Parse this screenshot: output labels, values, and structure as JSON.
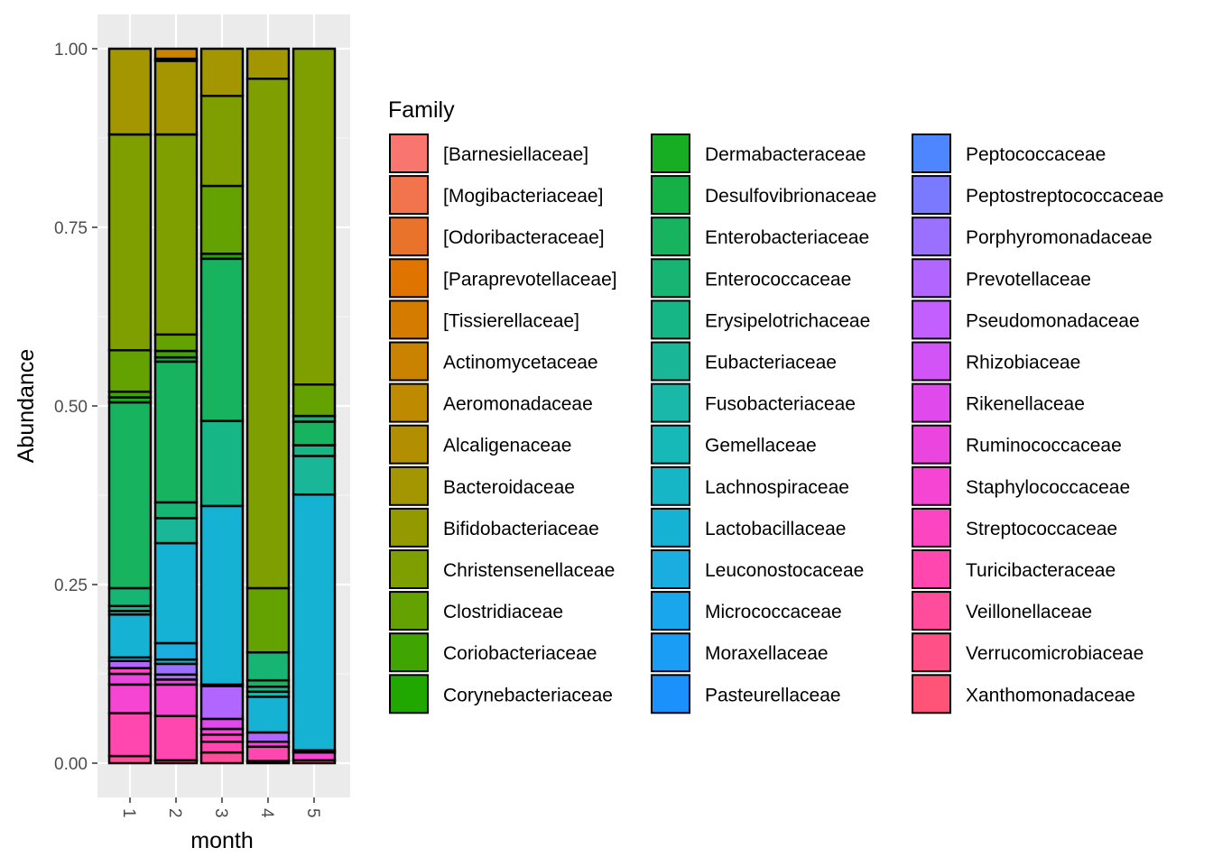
{
  "chart_data": {
    "type": "bar",
    "stacked": true,
    "xlabel": "month",
    "ylabel": "Abundance",
    "ylim": [
      0,
      1.05
    ],
    "x_tick_rotation": "vertical",
    "y_ticks": [
      "0.00",
      "0.25",
      "0.50",
      "0.75",
      "1.00"
    ],
    "categories": [
      "1",
      "2",
      "3",
      "4",
      "5"
    ],
    "legend": {
      "title": "Family",
      "position": "right",
      "columns": 3
    },
    "families": [
      {
        "name": "[Barnesiellaceae]",
        "color": "#F8766D"
      },
      {
        "name": "[Mogibacteriaceae]",
        "color": "#F2744C"
      },
      {
        "name": "[Odoribacteraceae]",
        "color": "#E9732B"
      },
      {
        "name": "[Paraprevotellaceae]",
        "color": "#DF7400"
      },
      {
        "name": "[Tissierellaceae]",
        "color": "#D37C00"
      },
      {
        "name": "Actinomycetaceae",
        "color": "#C98300"
      },
      {
        "name": "Aeromonadaceae",
        "color": "#BE8A00"
      },
      {
        "name": "Alcaligenaceae",
        "color": "#B28F00"
      },
      {
        "name": "Bacteroidaceae",
        "color": "#A39600"
      },
      {
        "name": "Bifidobacteriaceae",
        "color": "#929A00"
      },
      {
        "name": "Christensenellaceae",
        "color": "#7F9F00"
      },
      {
        "name": "Clostridiaceae",
        "color": "#63A200"
      },
      {
        "name": "Coriobacteriaceae",
        "color": "#41A500"
      },
      {
        "name": "Corynebacteriaceae",
        "color": "#21A800"
      },
      {
        "name": "Dermabacteraceae",
        "color": "#17AE24"
      },
      {
        "name": "Desulfovibrionaceae",
        "color": "#15B146"
      },
      {
        "name": "Enterobacteriaceae",
        "color": "#17B35E"
      },
      {
        "name": "Enterococcaceae",
        "color": "#16B574"
      },
      {
        "name": "Erysipelotrichaceae",
        "color": "#16B687"
      },
      {
        "name": "Eubacteriaceae",
        "color": "#19B798"
      },
      {
        "name": "Fusobacteriaceae",
        "color": "#19B8A8"
      },
      {
        "name": "Gemellaceae",
        "color": "#17B8B8"
      },
      {
        "name": "Lachnospiraceae",
        "color": "#17B6C6"
      },
      {
        "name": "Lactobacillaceae",
        "color": "#16B2D4"
      },
      {
        "name": "Leuconostocaceae",
        "color": "#1AADE0"
      },
      {
        "name": "Micrococcaceae",
        "color": "#1AA6EA"
      },
      {
        "name": "Moraxellaceae",
        "color": "#1A9DF5"
      },
      {
        "name": "Pasteurellaceae",
        "color": "#1B91FC"
      },
      {
        "name": "Peptococcaceae",
        "color": "#4D86FF"
      },
      {
        "name": "Peptostreptococcaceae",
        "color": "#797AFF"
      },
      {
        "name": "Porphyromonadaceae",
        "color": "#9A71FF"
      },
      {
        "name": "Prevotellaceae",
        "color": "#B066FF"
      },
      {
        "name": "Pseudomonadaceae",
        "color": "#C35EFF"
      },
      {
        "name": "Rhizobiaceae",
        "color": "#D253F6"
      },
      {
        "name": "Rikenellaceae",
        "color": "#E049EC"
      },
      {
        "name": "Ruminococcaceae",
        "color": "#EB45DF"
      },
      {
        "name": "Staphylococcaceae",
        "color": "#F545D2"
      },
      {
        "name": "Streptococcaceae",
        "color": "#FB45C1"
      },
      {
        "name": "Turicibacteraceae",
        "color": "#FF47AF"
      },
      {
        "name": "Veillonellaceae",
        "color": "#FF4C9B"
      },
      {
        "name": "Verrucomicrobiaceae",
        "color": "#FF5087"
      },
      {
        "name": "Xanthomonadaceae",
        "color": "#FF5478"
      }
    ],
    "series": [
      {
        "category": "1",
        "segments": [
          {
            "family": "Veillonellaceae",
            "from": 0.0,
            "to": 0.01
          },
          {
            "family": "Turicibacteraceae",
            "from": 0.01,
            "to": 0.07
          },
          {
            "family": "Staphylococcaceae",
            "from": 0.07,
            "to": 0.11
          },
          {
            "family": "Ruminococcaceae",
            "from": 0.11,
            "to": 0.125
          },
          {
            "family": "Streptococcaceae",
            "from": 0.125,
            "to": 0.133
          },
          {
            "family": "Prevotellaceae",
            "from": 0.133,
            "to": 0.143
          },
          {
            "family": "Lachnospiraceae",
            "from": 0.143,
            "to": 0.148
          },
          {
            "family": "Lactobacillaceae",
            "from": 0.148,
            "to": 0.208
          },
          {
            "family": "Fusobacteriaceae",
            "from": 0.208,
            "to": 0.213
          },
          {
            "family": "Erysipelotrichaceae",
            "from": 0.213,
            "to": 0.22
          },
          {
            "family": "Enterococcaceae",
            "from": 0.22,
            "to": 0.245
          },
          {
            "family": "Enterobacteriaceae",
            "from": 0.245,
            "to": 0.505
          },
          {
            "family": "Dermabacteraceae",
            "from": 0.505,
            "to": 0.512
          },
          {
            "family": "Coriobacteriaceae",
            "from": 0.512,
            "to": 0.52
          },
          {
            "family": "Clostridiaceae",
            "from": 0.52,
            "to": 0.578
          },
          {
            "family": "Christensenellaceae",
            "from": 0.578,
            "to": 0.88
          },
          {
            "family": "Bacteroidaceae",
            "from": 0.88,
            "to": 1.0
          }
        ]
      },
      {
        "category": "2",
        "segments": [
          {
            "family": "Veillonellaceae",
            "from": 0.0,
            "to": 0.004
          },
          {
            "family": "Turicibacteraceae",
            "from": 0.004,
            "to": 0.066
          },
          {
            "family": "Staphylococcaceae",
            "from": 0.066,
            "to": 0.11
          },
          {
            "family": "Ruminococcaceae",
            "from": 0.11,
            "to": 0.117
          },
          {
            "family": "Prevotellaceae",
            "from": 0.117,
            "to": 0.124
          },
          {
            "family": "Porphyromonadaceae",
            "from": 0.124,
            "to": 0.139
          },
          {
            "family": "Lachnospiraceae",
            "from": 0.139,
            "to": 0.145
          },
          {
            "family": "Leuconostocaceae",
            "from": 0.145,
            "to": 0.168
          },
          {
            "family": "Lactobacillaceae",
            "from": 0.168,
            "to": 0.308
          },
          {
            "family": "Eubacteriaceae",
            "from": 0.308,
            "to": 0.343
          },
          {
            "family": "Enterococcaceae",
            "from": 0.343,
            "to": 0.365
          },
          {
            "family": "Enterobacteriaceae",
            "from": 0.365,
            "to": 0.562
          },
          {
            "family": "Desulfovibrionaceae",
            "from": 0.562,
            "to": 0.568
          },
          {
            "family": "Coriobacteriaceae",
            "from": 0.568,
            "to": 0.577
          },
          {
            "family": "Clostridiaceae",
            "from": 0.577,
            "to": 0.6
          },
          {
            "family": "Christensenellaceae",
            "from": 0.6,
            "to": 0.88
          },
          {
            "family": "Bacteroidaceae",
            "from": 0.88,
            "to": 0.983
          },
          {
            "family": "Alcaligenaceae",
            "from": 0.983,
            "to": 0.986
          },
          {
            "family": "Actinomycetaceae",
            "from": 0.986,
            "to": 1.0
          }
        ]
      },
      {
        "category": "3",
        "segments": [
          {
            "family": "Veillonellaceae",
            "from": 0.0,
            "to": 0.015
          },
          {
            "family": "Turicibacteraceae",
            "from": 0.015,
            "to": 0.03
          },
          {
            "family": "Streptococcaceae",
            "from": 0.03,
            "to": 0.04
          },
          {
            "family": "Staphylococcaceae",
            "from": 0.04,
            "to": 0.048
          },
          {
            "family": "Rikenellaceae",
            "from": 0.048,
            "to": 0.062
          },
          {
            "family": "Prevotellaceae",
            "from": 0.062,
            "to": 0.108
          },
          {
            "family": "Lachnospiraceae",
            "from": 0.108,
            "to": 0.11
          },
          {
            "family": "Lactobacillaceae",
            "from": 0.11,
            "to": 0.36
          },
          {
            "family": "Erysipelotrichaceae",
            "from": 0.36,
            "to": 0.479
          },
          {
            "family": "Enterobacteriaceae",
            "from": 0.479,
            "to": 0.706
          },
          {
            "family": "Corynebacteriaceae",
            "from": 0.706,
            "to": 0.713
          },
          {
            "family": "Clostridiaceae",
            "from": 0.713,
            "to": 0.808
          },
          {
            "family": "Christensenellaceae",
            "from": 0.808,
            "to": 0.934
          },
          {
            "family": "Bacteroidaceae",
            "from": 0.934,
            "to": 1.0
          }
        ]
      },
      {
        "category": "4",
        "segments": [
          {
            "family": "Veillonellaceae",
            "from": 0.0,
            "to": 0.003
          },
          {
            "family": "Turicibacteraceae",
            "from": 0.003,
            "to": 0.023
          },
          {
            "family": "Staphylococcaceae",
            "from": 0.023,
            "to": 0.03
          },
          {
            "family": "Prevotellaceae",
            "from": 0.03,
            "to": 0.043
          },
          {
            "family": "Lactobacillaceae",
            "from": 0.043,
            "to": 0.093
          },
          {
            "family": "Fusobacteriaceae",
            "from": 0.093,
            "to": 0.1
          },
          {
            "family": "Erysipelotrichaceae",
            "from": 0.1,
            "to": 0.107
          },
          {
            "family": "Enterobacteriaceae",
            "from": 0.107,
            "to": 0.116
          },
          {
            "family": "Enterococcaceae",
            "from": 0.116,
            "to": 0.155
          },
          {
            "family": "Clostridiaceae",
            "from": 0.155,
            "to": 0.245
          },
          {
            "family": "Christensenellaceae",
            "from": 0.245,
            "to": 0.958
          },
          {
            "family": "Bacteroidaceae",
            "from": 0.958,
            "to": 1.0
          }
        ]
      },
      {
        "category": "5",
        "segments": [
          {
            "family": "Veillonellaceae",
            "from": 0.0,
            "to": 0.004
          },
          {
            "family": "Staphylococcaceae",
            "from": 0.004,
            "to": 0.015
          },
          {
            "family": "Lachnospiraceae",
            "from": 0.015,
            "to": 0.018
          },
          {
            "family": "Lactobacillaceae",
            "from": 0.018,
            "to": 0.376
          },
          {
            "family": "Eubacteriaceae",
            "from": 0.376,
            "to": 0.43
          },
          {
            "family": "Erysipelotrichaceae",
            "from": 0.43,
            "to": 0.445
          },
          {
            "family": "Enterobacteriaceae",
            "from": 0.445,
            "to": 0.478
          },
          {
            "family": "Enterococcaceae",
            "from": 0.478,
            "to": 0.486
          },
          {
            "family": "Clostridiaceae",
            "from": 0.486,
            "to": 0.53
          },
          {
            "family": "Christensenellaceae",
            "from": 0.53,
            "to": 1.0
          }
        ]
      }
    ]
  }
}
